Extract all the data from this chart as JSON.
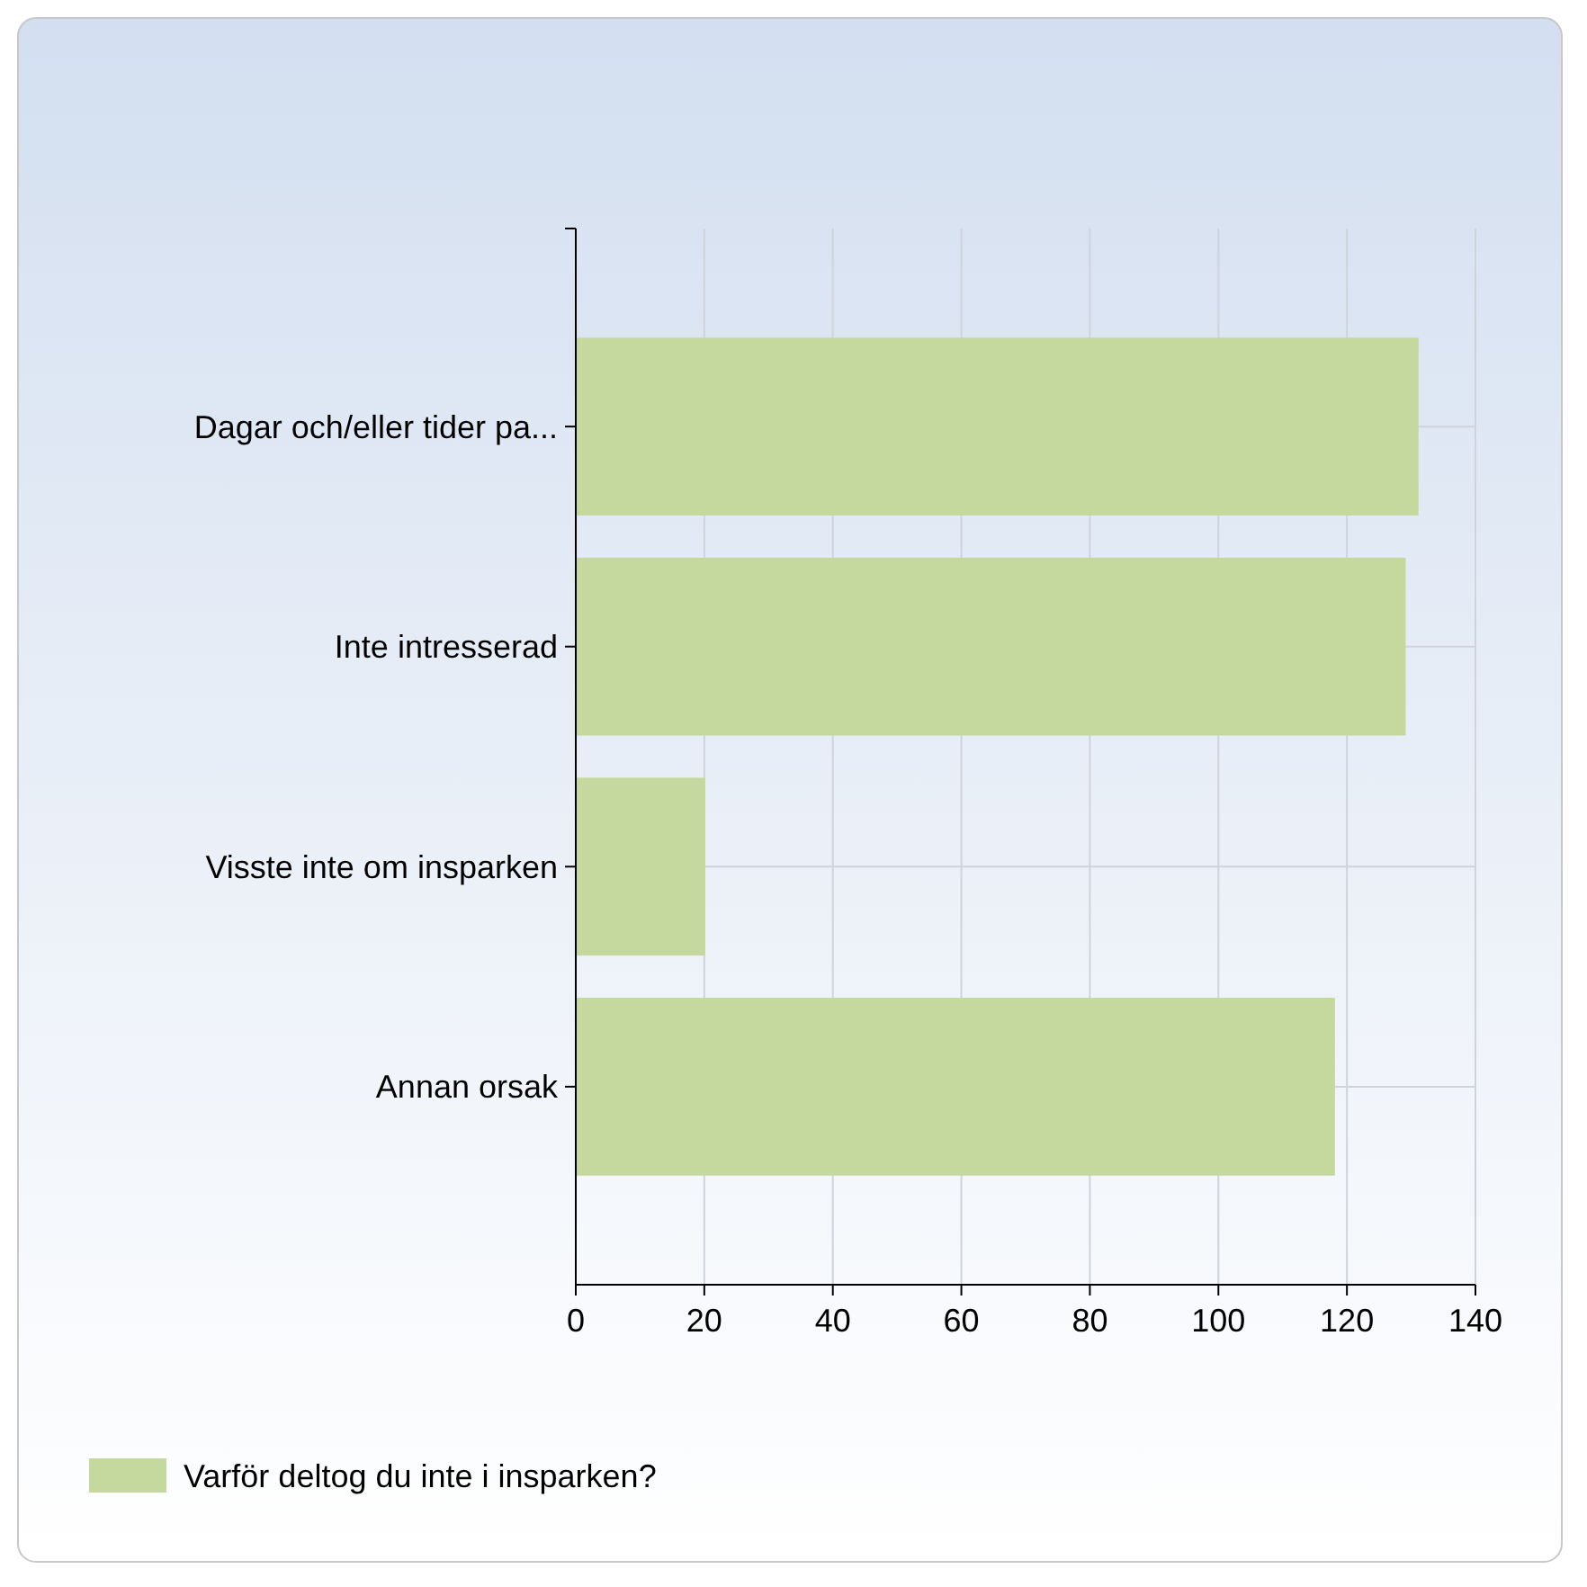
{
  "chart_data": {
    "type": "bar",
    "orientation": "horizontal",
    "categories": [
      "Dagar och/eller tider pa...",
      "Inte intresserad",
      "Visste inte om insparken",
      "Annan orsak"
    ],
    "series": [
      {
        "name": "Varför deltog du inte i insparken?",
        "color": "#c5d89e",
        "values": [
          131,
          129,
          20,
          118
        ]
      }
    ],
    "xlim": [
      0,
      140
    ],
    "xticks": [
      0,
      20,
      40,
      60,
      80,
      100,
      120,
      140
    ],
    "grid": true,
    "legend": "bottom left"
  }
}
